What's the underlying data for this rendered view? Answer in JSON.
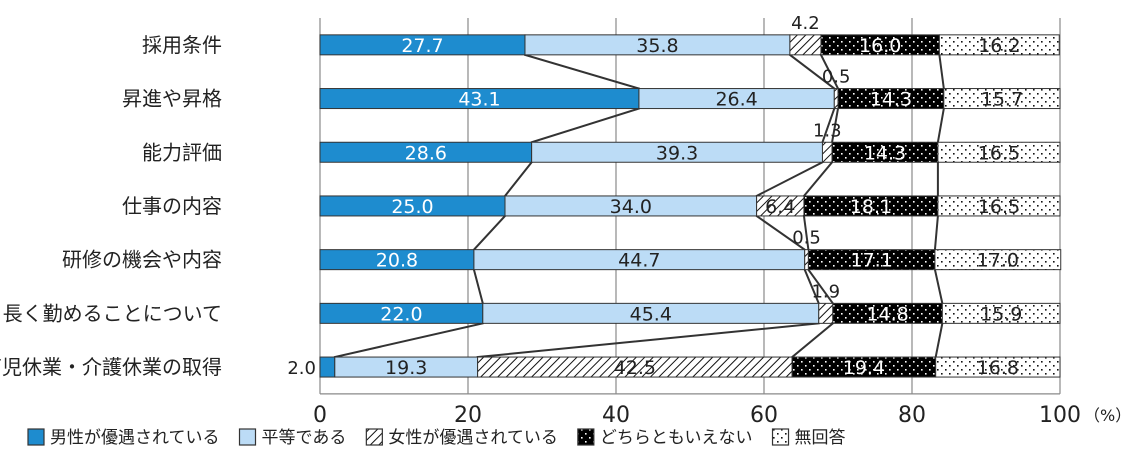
{
  "chart_data": {
    "type": "bar",
    "stacked": true,
    "orientation": "horizontal",
    "percent_unit": "（%）",
    "categories": [
      "採用条件",
      "昇進や昇格",
      "能力評価",
      "仕事の内容",
      "研修の機会や内容",
      "長く勤めることについて",
      "育児休業・介護休業の取得"
    ],
    "series": [
      {
        "name": "男性が優遇されている",
        "values": [
          27.7,
          43.1,
          28.6,
          25.0,
          20.8,
          22.0,
          2.0
        ],
        "labels": [
          "27.7",
          "43.1",
          "28.6",
          "25.0",
          "20.8",
          "22.0",
          "2.0"
        ],
        "color": "#1e8ccf",
        "pattern": "solid"
      },
      {
        "name": "平等である",
        "values": [
          35.8,
          26.4,
          39.3,
          34.0,
          44.7,
          45.4,
          19.3
        ],
        "labels": [
          "35.8",
          "26.4",
          "39.3",
          "34.0",
          "44.7",
          "45.4",
          "19.3"
        ],
        "color": "#bcdcf6",
        "pattern": "solid"
      },
      {
        "name": "女性が優遇されている",
        "values": [
          4.2,
          0.5,
          1.3,
          6.4,
          0.5,
          1.9,
          42.5
        ],
        "labels": [
          "4.2",
          "0.5",
          "1.3",
          "6.4",
          "0.5",
          "1.9",
          "42.5"
        ],
        "color": "#000000",
        "pattern": "diagonal"
      },
      {
        "name": "どちらともいえない",
        "values": [
          16.0,
          14.3,
          14.3,
          18.1,
          17.1,
          14.8,
          19.4
        ],
        "labels": [
          "16.0",
          "14.3",
          "14.3",
          "18.1",
          "17.1",
          "14.8",
          "19.4"
        ],
        "color": "#000000",
        "pattern": "dark-dots"
      },
      {
        "name": "無回答",
        "values": [
          16.2,
          15.7,
          16.5,
          16.5,
          17.0,
          15.9,
          16.8
        ],
        "labels": [
          "16.2",
          "15.7",
          "16.5",
          "16.5",
          "17.0",
          "15.9",
          "16.8"
        ],
        "color": "#ffffff",
        "pattern": "light-dots"
      }
    ],
    "xlim": [
      0,
      100
    ],
    "xticks": [
      "0",
      "20",
      "40",
      "60",
      "80",
      "100"
    ],
    "grid": true,
    "legend_position": "bottom",
    "connector_lines": true
  }
}
